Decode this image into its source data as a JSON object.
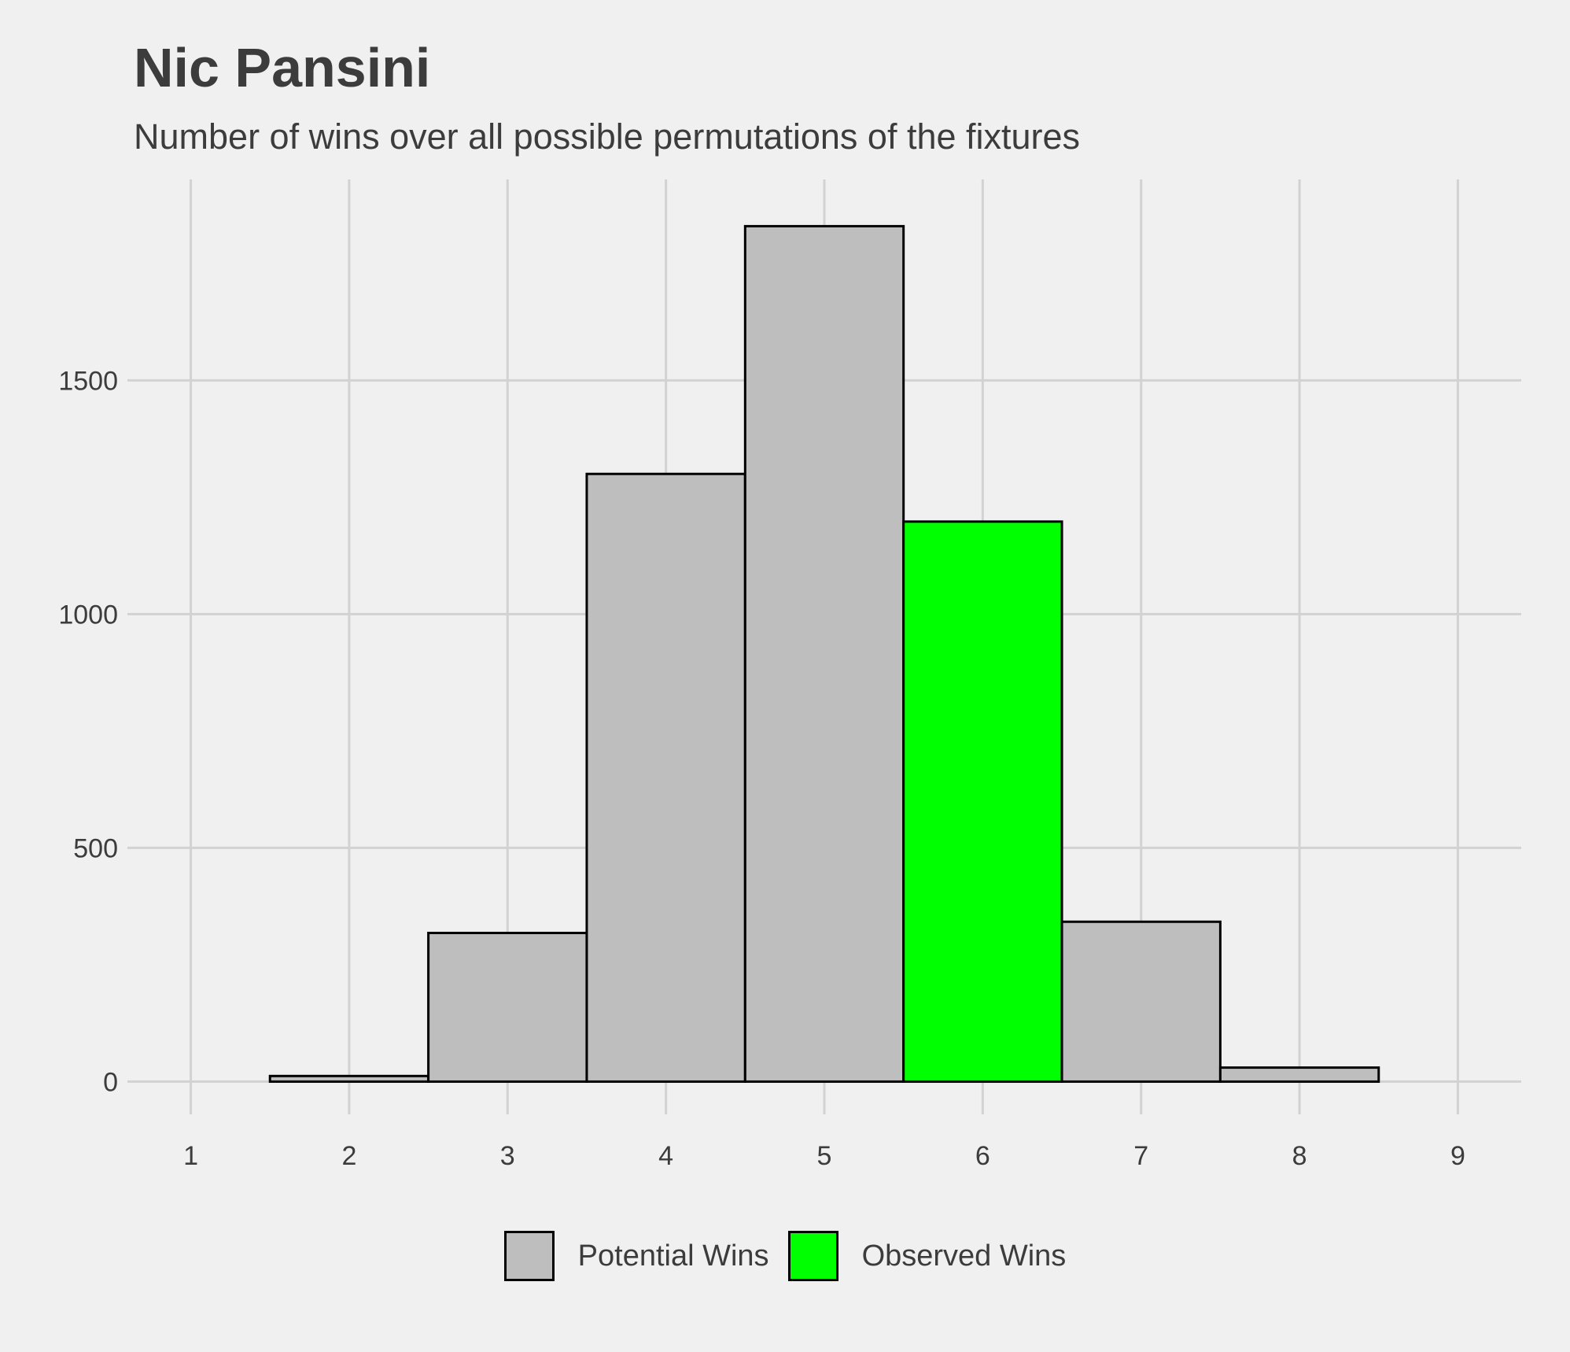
{
  "title": "Nic Pansini",
  "subtitle": "Number of wins over all possible permutations of the fixtures",
  "chart_data": {
    "type": "bar",
    "title": "Nic Pansini",
    "subtitle": "Number of wins over all possible permutations of the fixtures",
    "xlabel": "",
    "ylabel": "",
    "x_ticks": [
      "1",
      "2",
      "3",
      "4",
      "5",
      "6",
      "7",
      "8",
      "9"
    ],
    "y_ticks": [
      "0",
      "500",
      "1000",
      "1500"
    ],
    "xlim": [
      0.6,
      9.4
    ],
    "ylim": [
      -70,
      1930
    ],
    "grid": true,
    "legend_position": "bottom",
    "legend": [
      {
        "label": "Potential Wins",
        "color": "#bebebe"
      },
      {
        "label": "Observed Wins",
        "color": "#00ff00"
      }
    ],
    "bars": [
      {
        "x": 2,
        "value": 12,
        "series": "Potential Wins"
      },
      {
        "x": 3,
        "value": 318,
        "series": "Potential Wins"
      },
      {
        "x": 4,
        "value": 1300,
        "series": "Potential Wins"
      },
      {
        "x": 5,
        "value": 1830,
        "series": "Potential Wins"
      },
      {
        "x": 6,
        "value": 1198,
        "series": "Observed Wins"
      },
      {
        "x": 7,
        "value": 342,
        "series": "Potential Wins"
      },
      {
        "x": 8,
        "value": 30,
        "series": "Potential Wins"
      }
    ],
    "colors": {
      "background": "#f0f0f0",
      "grid": "#d2d2d2",
      "potential": "#bebebe",
      "observed": "#00ff00",
      "outline": "#000000",
      "text": "#3c3c3c"
    }
  }
}
